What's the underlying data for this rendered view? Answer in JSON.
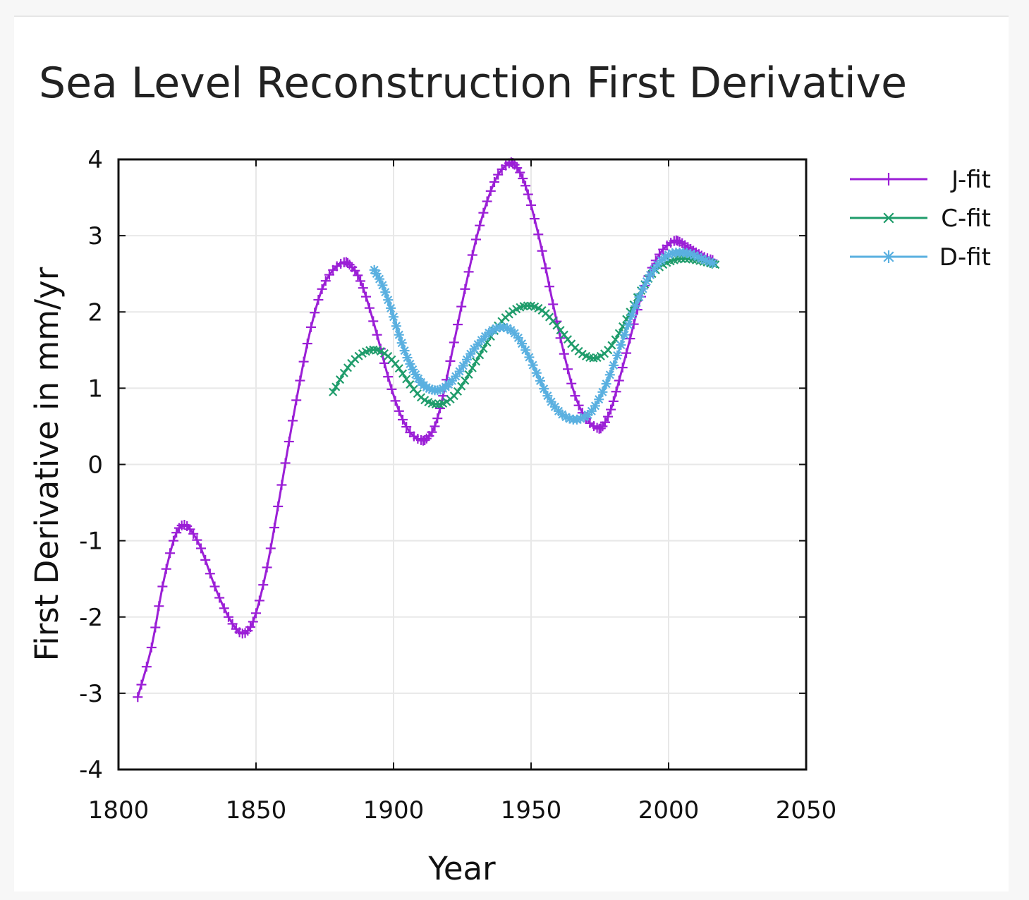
{
  "chart_data": {
    "type": "line",
    "title": "Sea Level Reconstruction First Derivative",
    "xlabel": "Year",
    "ylabel": "First Derivative in mm/yr",
    "xlim": [
      1800,
      2050
    ],
    "ylim": [
      -4,
      4
    ],
    "x_ticks": [
      "1800",
      "1850",
      "1900",
      "1950",
      "2000",
      "2050"
    ],
    "y_ticks": [
      "4",
      "3",
      "2",
      "1",
      "0",
      "-1",
      "-2",
      "-3",
      "-4"
    ],
    "grid": true,
    "legend_position": "top-right outside",
    "series": [
      {
        "name": "J-fit",
        "color": "#9b1fd6",
        "marker": "plus",
        "x": [
          1807,
          1812,
          1816,
          1820,
          1823,
          1826,
          1830,
          1835,
          1840,
          1844,
          1847,
          1850,
          1854,
          1858,
          1862,
          1866,
          1870,
          1874,
          1878,
          1882,
          1884,
          1887,
          1890,
          1894,
          1898,
          1902,
          1906,
          1910,
          1912,
          1915,
          1918,
          1922,
          1926,
          1930,
          1934,
          1938,
          1942,
          1944,
          1947,
          1950,
          1954,
          1958,
          1962,
          1966,
          1970,
          1974,
          1976,
          1979,
          1982,
          1986,
          1990,
          1994,
          1998,
          2002,
          2004,
          2007,
          2010,
          2013,
          2016
        ],
        "y": [
          -3.05,
          -2.4,
          -1.6,
          -1.0,
          -0.8,
          -0.85,
          -1.1,
          -1.6,
          -2.0,
          -2.2,
          -2.18,
          -1.95,
          -1.35,
          -0.55,
          0.3,
          1.1,
          1.8,
          2.3,
          2.55,
          2.65,
          2.62,
          2.48,
          2.2,
          1.7,
          1.15,
          0.7,
          0.42,
          0.32,
          0.34,
          0.5,
          0.9,
          1.6,
          2.3,
          2.95,
          3.45,
          3.8,
          3.95,
          3.93,
          3.75,
          3.4,
          2.8,
          2.1,
          1.45,
          0.9,
          0.6,
          0.48,
          0.5,
          0.72,
          1.1,
          1.65,
          2.2,
          2.58,
          2.82,
          2.93,
          2.92,
          2.85,
          2.78,
          2.72,
          2.68
        ]
      },
      {
        "name": "C-fit",
        "color": "#1f9c6b",
        "marker": "cross",
        "x": [
          1878,
          1882,
          1886,
          1890,
          1894,
          1898,
          1902,
          1906,
          1910,
          1914,
          1918,
          1922,
          1926,
          1930,
          1934,
          1938,
          1942,
          1946,
          1950,
          1954,
          1958,
          1962,
          1966,
          1970,
          1974,
          1978,
          1982,
          1986,
          1990,
          1994,
          1998,
          2002,
          2006,
          2010,
          2014,
          2017
        ],
        "y": [
          0.95,
          1.2,
          1.38,
          1.48,
          1.5,
          1.42,
          1.26,
          1.05,
          0.88,
          0.8,
          0.8,
          0.9,
          1.1,
          1.35,
          1.6,
          1.82,
          1.97,
          2.06,
          2.08,
          2.02,
          1.88,
          1.7,
          1.53,
          1.42,
          1.4,
          1.5,
          1.72,
          2.0,
          2.28,
          2.5,
          2.62,
          2.68,
          2.7,
          2.68,
          2.65,
          2.62
        ]
      },
      {
        "name": "D-fit",
        "color": "#5ab0e0",
        "marker": "star",
        "x": [
          1893,
          1896,
          1899,
          1902,
          1905,
          1908,
          1911,
          1914,
          1917,
          1920,
          1924,
          1928,
          1932,
          1936,
          1940,
          1944,
          1948,
          1952,
          1956,
          1960,
          1964,
          1968,
          1972,
          1976,
          1980,
          1984,
          1988,
          1992,
          1996,
          2000,
          2004,
          2008,
          2012,
          2016
        ],
        "y": [
          2.55,
          2.35,
          2.05,
          1.7,
          1.4,
          1.18,
          1.04,
          0.98,
          0.98,
          1.05,
          1.22,
          1.45,
          1.63,
          1.76,
          1.8,
          1.72,
          1.5,
          1.2,
          0.9,
          0.7,
          0.6,
          0.6,
          0.7,
          0.95,
          1.3,
          1.7,
          2.08,
          2.4,
          2.62,
          2.75,
          2.78,
          2.76,
          2.7,
          2.64
        ]
      }
    ]
  }
}
